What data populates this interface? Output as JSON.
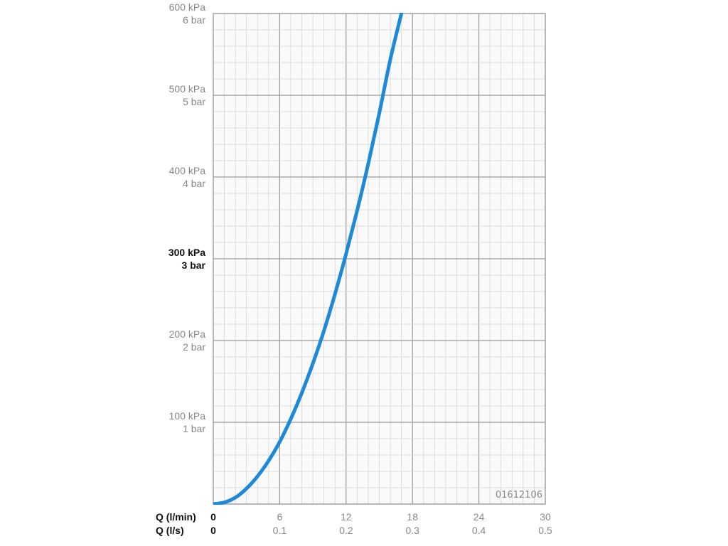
{
  "chart_data": {
    "type": "line",
    "x_label_primary": "Q (l/min)",
    "x_label_secondary": "Q (l/s)",
    "x_ticks_primary": [
      "0",
      "6",
      "12",
      "18",
      "24",
      "30"
    ],
    "x_ticks_secondary": [
      "0",
      "0.1",
      "0.2",
      "0.3",
      "0.4",
      "0.5"
    ],
    "y_ticks": [
      {
        "kpa": "100 kPa",
        "bar": "1 bar",
        "bold": false
      },
      {
        "kpa": "200 kPa",
        "bar": "2 bar",
        "bold": false
      },
      {
        "kpa": "300 kPa",
        "bar": "3 bar",
        "bold": true
      },
      {
        "kpa": "400 kPa",
        "bar": "4 bar",
        "bold": false
      },
      {
        "kpa": "500 kPa",
        "bar": "5 bar",
        "bold": false
      },
      {
        "kpa": "600 kPa",
        "bar": "6 bar",
        "bold": false
      }
    ],
    "xlim": [
      0,
      30
    ],
    "ylim": [
      0,
      600
    ],
    "grid": true,
    "series": [
      {
        "x": [
          0,
          1,
          2,
          3,
          4,
          5,
          6,
          7,
          8,
          9,
          10,
          11,
          12,
          13,
          14,
          15,
          16,
          17
        ],
        "y": [
          0,
          2,
          8,
          19,
          34,
          53,
          76,
          104,
          136,
          172,
          212,
          257,
          306,
          359,
          416,
          478,
          544,
          600
        ],
        "color": "#1e88d9"
      }
    ],
    "annotation": "01612106"
  }
}
